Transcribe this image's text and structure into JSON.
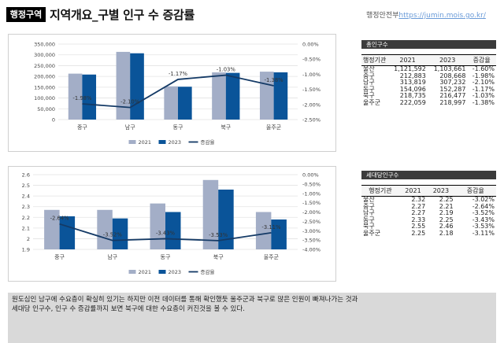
{
  "header": {
    "badge": "행정구역",
    "title": "지역개요_구별 인구 수 증감률",
    "source_label": "행정안전부",
    "source_link": "https://jumin.mois.go.kr/"
  },
  "population_panel": {
    "title": "총인구수",
    "columns": [
      "행정기관",
      "2021",
      "2023",
      "증감율"
    ],
    "rows": [
      [
        "울산",
        "1,121,592",
        "1,103,661",
        "-1.60%"
      ],
      [
        "중구",
        "212,883",
        "208,668",
        "-1.98%"
      ],
      [
        "남구",
        "313,819",
        "307,232",
        "-2.10%"
      ],
      [
        "동구",
        "154,096",
        "152,287",
        "-1.17%"
      ],
      [
        "북구",
        "218,735",
        "216,477",
        "-1.03%"
      ],
      [
        "울주군",
        "222,059",
        "218,997",
        "-1.38%"
      ]
    ]
  },
  "household_panel": {
    "title": "세대당인구수",
    "columns": [
      "행정기관",
      "2021",
      "2023",
      "증감율"
    ],
    "rows": [
      [
        "울산",
        "2.32",
        "2.25",
        "-3.02%"
      ],
      [
        "중구",
        "2.27",
        "2.21",
        "-2.64%"
      ],
      [
        "남구",
        "2.27",
        "2.19",
        "-3.52%"
      ],
      [
        "동구",
        "2.33",
        "2.25",
        "-3.43%"
      ],
      [
        "북구",
        "2.55",
        "2.46",
        "-3.53%"
      ],
      [
        "울주군",
        "2.25",
        "2.18",
        "-3.11%"
      ]
    ]
  },
  "chart_data": [
    {
      "type": "bar",
      "categories": [
        "중구",
        "남구",
        "동구",
        "북구",
        "울주군"
      ],
      "series": [
        {
          "name": "2021",
          "values": [
            212883,
            313819,
            154096,
            218735,
            222059
          ],
          "color": "#a3aec7",
          "axis": "left"
        },
        {
          "name": "2023",
          "values": [
            208668,
            307232,
            152287,
            216477,
            218997
          ],
          "color": "#0a5499",
          "axis": "left"
        },
        {
          "name": "증감율",
          "type": "line",
          "values": [
            -1.98,
            -2.1,
            -1.17,
            -1.03,
            -1.38
          ],
          "labels": [
            "-1.98%",
            "-2.10%",
            "-1.17%",
            "-1.03%",
            "-1.38%"
          ],
          "color": "#143a66",
          "axis": "right"
        }
      ],
      "ylim": [
        0,
        350000
      ],
      "yticks": [
        "0",
        "50,000",
        "100,000",
        "150,000",
        "200,000",
        "250,000",
        "300,000",
        "350,000"
      ],
      "y2lim": [
        0,
        -2.5
      ],
      "y2ticks": [
        "0.00%",
        "-0.50%",
        "-1.00%",
        "-1.50%",
        "-2.00%",
        "-2.50%"
      ],
      "legend": "bottom"
    },
    {
      "type": "bar",
      "categories": [
        "중구",
        "남구",
        "동구",
        "북구",
        "울주군"
      ],
      "series": [
        {
          "name": "2021",
          "values": [
            2.27,
            2.27,
            2.33,
            2.55,
            2.25
          ],
          "color": "#a3aec7",
          "axis": "left"
        },
        {
          "name": "2023",
          "values": [
            2.21,
            2.19,
            2.25,
            2.46,
            2.18
          ],
          "color": "#0a5499",
          "axis": "left"
        },
        {
          "name": "증감율",
          "type": "line",
          "values": [
            -2.64,
            -3.52,
            -3.43,
            -3.53,
            -3.11
          ],
          "labels": [
            "-2.64%",
            "-3.52%",
            "-3.43%",
            "-3.53%",
            "-3.11%"
          ],
          "color": "#143a66",
          "axis": "right"
        }
      ],
      "ylim": [
        1.9,
        2.6
      ],
      "yticks": [
        "1.9",
        "2",
        "2.1",
        "2.2",
        "2.3",
        "2.4",
        "2.5",
        "2.6"
      ],
      "y2lim": [
        0,
        -4.0
      ],
      "y2ticks": [
        "0.00%",
        "-0.50%",
        "-1.00%",
        "-1.50%",
        "-2.00%",
        "-2.50%",
        "-3.00%",
        "-3.50%",
        "-4.00%"
      ],
      "legend": "bottom"
    }
  ],
  "note": {
    "line1": "원도심인 남구에 수요층이 확실히 있기는 하지만 이전 데이터를 통해 확인했듯 울주군과 북구로 많은 인원이 빠져나가는 것과",
    "line2": "세대당 인구수, 인구 수 증감률까지 보면 북구에 대한 수요층이 커진것을 볼 수 있다."
  }
}
